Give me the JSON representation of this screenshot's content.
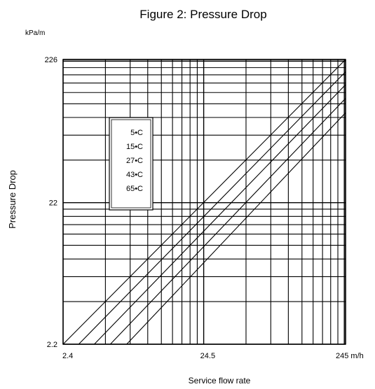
{
  "chart_data": {
    "type": "line",
    "title": "Figure 2: Pressure Drop",
    "unit_label": "kPa/m",
    "ylabel": "Pressure Drop",
    "xlabel": "Service flow rate",
    "x_scale": "log",
    "y_scale": "log",
    "xlim": [
      2.4,
      245
    ],
    "ylim": [
      2.2,
      226
    ],
    "x_ticks": [
      {
        "value": 2.4,
        "label": "2.4"
      },
      {
        "value": 24.5,
        "label": "24.5"
      },
      {
        "value": 245,
        "label": "245 m/h"
      }
    ],
    "y_ticks": [
      {
        "value": 2.2,
        "label": "2.2"
      },
      {
        "value": 22,
        "label": "22"
      },
      {
        "value": 226,
        "label": "226"
      }
    ],
    "grid": true,
    "legend_position": "upper-left inside plot",
    "line_color": "#000000",
    "series": [
      {
        "name": "5•C",
        "x": [
          2.4,
          245
        ],
        "y": [
          2.2,
          226
        ]
      },
      {
        "name": "15•C",
        "x": [
          3.1,
          245
        ],
        "y": [
          2.2,
          185
        ]
      },
      {
        "name": "27•C",
        "x": [
          4.0,
          245
        ],
        "y": [
          2.2,
          150
        ]
      },
      {
        "name": "43•C",
        "x": [
          5.2,
          245
        ],
        "y": [
          2.2,
          120
        ]
      },
      {
        "name": "65•C",
        "x": [
          6.8,
          245
        ],
        "y": [
          2.2,
          95
        ]
      }
    ]
  }
}
